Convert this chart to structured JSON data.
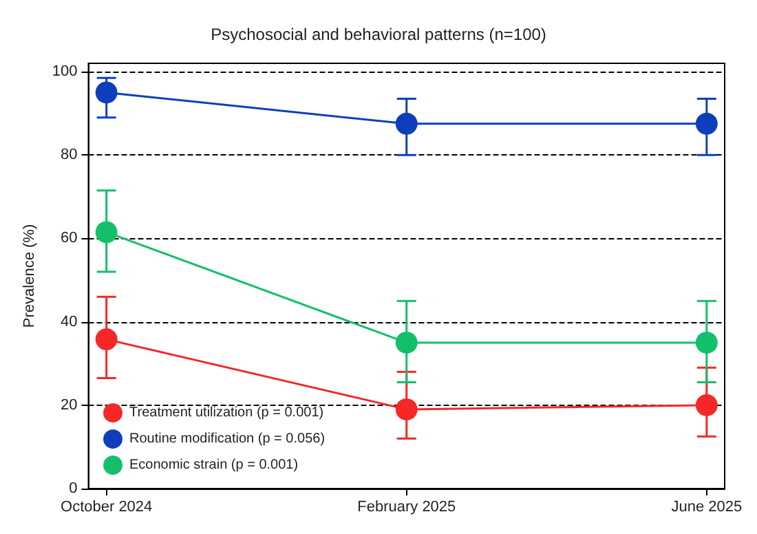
{
  "chart_data": {
    "type": "line",
    "title": "Psychosocial and behavioral patterns (n=100)",
    "ylabel": "Prevalence (%)",
    "categories": [
      "October 2024",
      "February 2025",
      "June 2025"
    ],
    "series": [
      {
        "name": "Treatment utilization (p = 0.001)",
        "color": "#f52727",
        "values": [
          35.8,
          19,
          20
        ],
        "errors": [
          [
            26.5,
            46
          ],
          [
            12,
            28
          ],
          [
            12.5,
            29
          ]
        ]
      },
      {
        "name": "Routine modification (p = 0.056)",
        "color": "#0d3fbd",
        "values": [
          95,
          87.5,
          87.5
        ],
        "errors": [
          [
            89,
            98.5
          ],
          [
            80,
            93.5
          ],
          [
            80,
            93.5
          ]
        ]
      },
      {
        "name": "Economic strain (p = 0.001)",
        "color": "#14bf6c",
        "values": [
          61.5,
          35,
          35
        ],
        "errors": [
          [
            52,
            71.5
          ],
          [
            25.5,
            45
          ],
          [
            25.5,
            45
          ]
        ]
      }
    ],
    "ylim": [
      0,
      102
    ],
    "yticks": [
      0,
      20,
      40,
      60,
      80,
      100
    ],
    "grid": "y",
    "legend": "bottom left",
    "marker": "circle",
    "line_style": "solid"
  }
}
